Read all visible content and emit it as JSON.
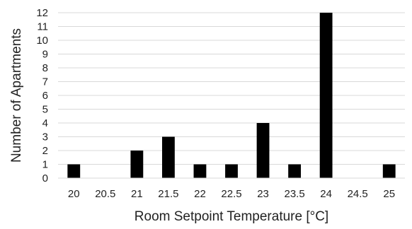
{
  "chart_data": {
    "type": "bar",
    "title": "",
    "xlabel": "Room Setpoint Temperature [°C]",
    "ylabel": "Number of Apartments",
    "categories": [
      "20",
      "20.5",
      "21",
      "21.5",
      "22",
      "22.5",
      "23",
      "23.5",
      "24",
      "24.5",
      "25"
    ],
    "values": [
      1,
      0,
      2,
      3,
      1,
      1,
      4,
      1,
      12,
      0,
      1
    ],
    "ylim": [
      0,
      12
    ],
    "yticks": [
      "0",
      "1",
      "2",
      "3",
      "4",
      "5",
      "6",
      "7",
      "8",
      "9",
      "10",
      "11",
      "12"
    ],
    "grid": true,
    "legend": "none",
    "colors": {
      "bar": "#000000",
      "grid": "#d9d9d9",
      "text": "#222222"
    }
  }
}
